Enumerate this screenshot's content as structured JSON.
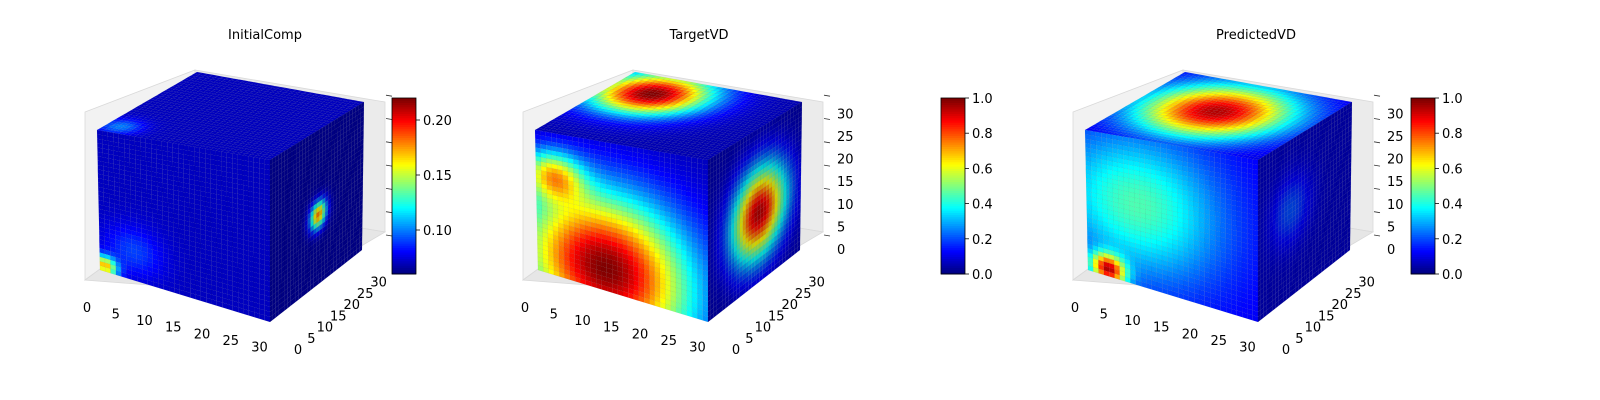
{
  "chart_data": [
    {
      "type": "voxel3d",
      "title": "InitialComp",
      "axes": {
        "x": {
          "ticks": [
            "0",
            "5",
            "10",
            "15",
            "20",
            "25",
            "30"
          ],
          "range": [
            0,
            32
          ]
        },
        "y": {
          "ticks": [
            "0",
            "5",
            "10",
            "15",
            "20",
            "25",
            "30"
          ],
          "range": [
            0,
            32
          ]
        },
        "z": {
          "ticks": [],
          "range": [
            0,
            32
          ]
        }
      },
      "colorbar": {
        "range": [
          0.06,
          0.22
        ],
        "ticks": [
          "0.10",
          "0.15",
          "0.20"
        ],
        "tick_values": [
          0.1,
          0.15,
          0.2
        ],
        "colormap": "jet"
      },
      "faces": {
        "top": {
          "base": 0.07,
          "blobs": [
            {
              "u": 0.08,
              "v": 0.1,
              "r": 0.08,
              "value": 0.1
            }
          ]
        },
        "front": {
          "base": 0.07,
          "blobs": [
            {
              "u": 0.03,
              "v": 0.96,
              "r": 0.05,
              "value": 0.17
            },
            {
              "u": 0.2,
              "v": 0.8,
              "r": 0.12,
              "value": 0.09
            }
          ]
        },
        "side": {
          "base": 0.065,
          "blobs": [
            {
              "u": 0.52,
              "v": 0.55,
              "r": 0.06,
              "value": 0.18
            }
          ]
        }
      },
      "grid": "on"
    },
    {
      "type": "voxel3d",
      "title": "TargetVD",
      "axes": {
        "x": {
          "ticks": [
            "0",
            "5",
            "10",
            "15",
            "20",
            "25",
            "30"
          ],
          "range": [
            0,
            32
          ]
        },
        "y": {
          "ticks": [
            "0",
            "5",
            "10",
            "15",
            "20",
            "25",
            "30"
          ],
          "range": [
            0,
            32
          ]
        },
        "z": {
          "ticks": [
            "0",
            "5",
            "10",
            "15",
            "20",
            "25",
            "30"
          ],
          "range": [
            0,
            32
          ]
        }
      },
      "colorbar": {
        "range": [
          0.0,
          1.0
        ],
        "ticks": [
          "0.0",
          "0.2",
          "0.4",
          "0.6",
          "0.8",
          "1.0"
        ],
        "tick_values": [
          0.0,
          0.2,
          0.4,
          0.6,
          0.8,
          1.0
        ],
        "colormap": "jet"
      },
      "faces": {
        "top": {
          "base": 0.05,
          "blobs": [
            {
              "u": 0.25,
              "v": 0.75,
              "r": 0.22,
              "value": 1.0
            }
          ]
        },
        "front": {
          "base": 0.05,
          "blobs": [
            {
              "u": 0.4,
              "v": 0.85,
              "r": 0.35,
              "value": 1.0
            },
            {
              "u": 0.1,
              "v": 0.3,
              "r": 0.12,
              "value": 0.55
            }
          ]
        },
        "side": {
          "base": 0.04,
          "blobs": [
            {
              "u": 0.55,
              "v": 0.55,
              "r": 0.2,
              "value": 0.95
            }
          ]
        }
      },
      "grid": "on"
    },
    {
      "type": "voxel3d",
      "title": "PredictedVD",
      "axes": {
        "x": {
          "ticks": [
            "0",
            "5",
            "10",
            "15",
            "20",
            "25",
            "30"
          ],
          "range": [
            0,
            32
          ]
        },
        "y": {
          "ticks": [
            "0",
            "5",
            "10",
            "15",
            "20",
            "25",
            "30"
          ],
          "range": [
            0,
            32
          ]
        },
        "z": {
          "ticks": [
            "0",
            "5",
            "10",
            "15",
            "20",
            "25",
            "30"
          ],
          "range": [
            0,
            32
          ]
        }
      },
      "colorbar": {
        "range": [
          0.0,
          1.0
        ],
        "ticks": [
          "0.0",
          "0.2",
          "0.4",
          "0.6",
          "0.8",
          "1.0"
        ],
        "tick_values": [
          0.0,
          0.2,
          0.4,
          0.6,
          0.8,
          1.0
        ],
        "colormap": "jet"
      },
      "faces": {
        "top": {
          "base": 0.08,
          "blobs": [
            {
              "u": 0.45,
              "v": 0.55,
              "r": 0.28,
              "value": 0.95
            }
          ]
        },
        "front": {
          "base": 0.1,
          "blobs": [
            {
              "u": 0.3,
              "v": 0.45,
              "r": 0.35,
              "value": 0.45
            },
            {
              "u": 0.12,
              "v": 0.95,
              "r": 0.07,
              "value": 0.85
            }
          ]
        },
        "side": {
          "base": 0.06,
          "blobs": [
            {
              "u": 0.35,
              "v": 0.45,
              "r": 0.15,
              "value": 0.2
            }
          ]
        }
      },
      "grid": "on"
    }
  ]
}
